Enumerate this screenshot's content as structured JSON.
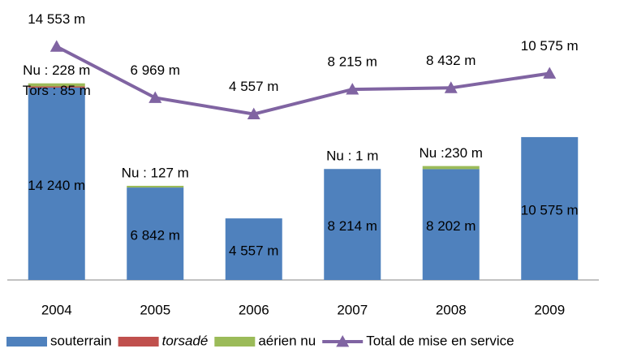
{
  "chart_data": {
    "type": "bar",
    "stacked": true,
    "categories": [
      "2004",
      "2005",
      "2006",
      "2007",
      "2008",
      "2009"
    ],
    "ylim": [
      0,
      20000
    ],
    "y2lim": [
      -20000,
      20000
    ],
    "legend": "bottom",
    "series": [
      {
        "name": "souterrain",
        "color": "#4f81bd",
        "values": [
          14240,
          6842,
          4557,
          8214,
          8202,
          10575
        ],
        "value_labels": [
          "14 240 m",
          "6 842 m",
          "4 557 m",
          "8 214 m",
          "8 202 m",
          "10 575 m"
        ]
      },
      {
        "name": "torsadé",
        "color": "#c0504d",
        "italic": true,
        "values": [
          85,
          0,
          0,
          0,
          0,
          0
        ],
        "value_labels": [
          "Tors : 85 m",
          null,
          null,
          null,
          null,
          null
        ]
      },
      {
        "name": "aérien nu",
        "color": "#9bbb59",
        "values": [
          228,
          127,
          0,
          1,
          230,
          0
        ],
        "value_labels": [
          "Nu : 228 m",
          "Nu : 127 m",
          null,
          "Nu : 1 m",
          "Nu :230 m",
          null
        ]
      },
      {
        "name": "Total de mise en service",
        "color": "#8064a2",
        "type": "line",
        "axis": "y2",
        "marker": "triangle",
        "values": [
          14553,
          6969,
          4557,
          8215,
          8432,
          10575
        ],
        "value_labels": [
          "14 553 m",
          "6 969 m",
          "4 557 m",
          "8 215 m",
          "8 432 m",
          "10 575 m"
        ]
      }
    ]
  }
}
